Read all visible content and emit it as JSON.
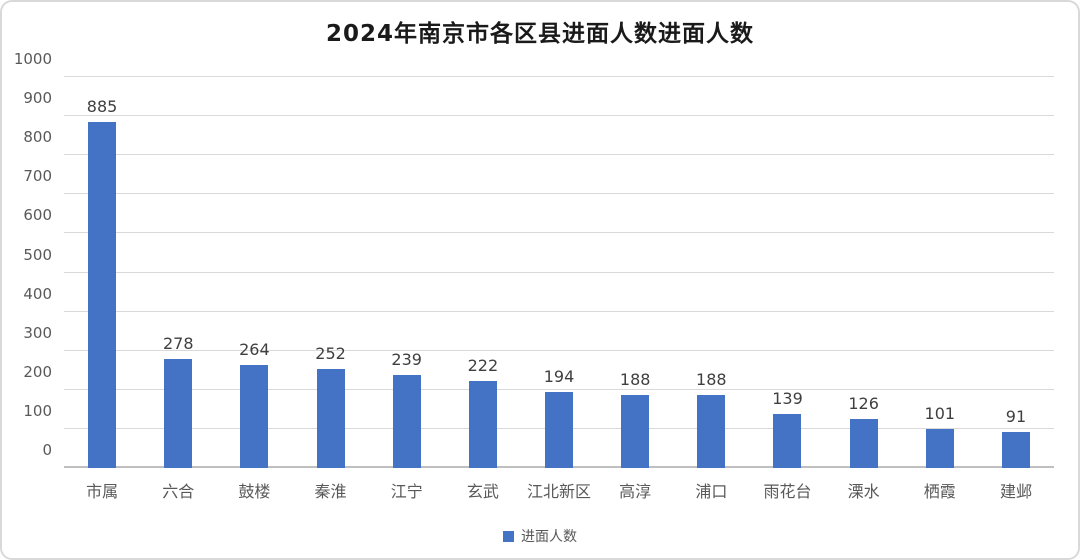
{
  "chart_data": {
    "type": "bar",
    "title": "2024年南京市各区县进面人数进面人数",
    "categories": [
      "市属",
      "六合",
      "鼓楼",
      "秦淮",
      "江宁",
      "玄武",
      "江北新区",
      "高淳",
      "浦口",
      "雨花台",
      "溧水",
      "栖霞",
      "建邺"
    ],
    "values": [
      885,
      278,
      264,
      252,
      239,
      222,
      194,
      188,
      188,
      139,
      126,
      101,
      91
    ],
    "series_name": "进面人数",
    "ylim": [
      0,
      1000
    ],
    "ytick_step": 100,
    "grid": true,
    "legend_position": "bottom",
    "bar_color": "#4472C4"
  },
  "legend": {
    "label": "进面人数",
    "swatch_color": "#4472C4"
  },
  "colors": {
    "bar": "#4472C4",
    "title": "#1a1a1a",
    "axis_label": "#595959",
    "value_label": "#3f3f3f",
    "gridline": "#d9d9d9",
    "axis_line": "#bfbfbf",
    "card_border": "#d9d9d9",
    "background": "#ffffff"
  }
}
